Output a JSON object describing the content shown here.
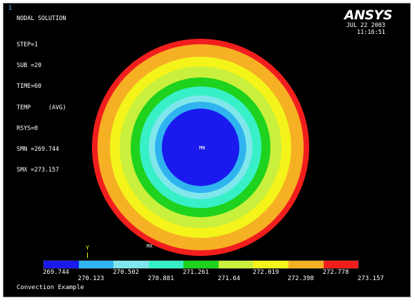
{
  "window_number": "1",
  "result_title": "NODAL SOLUTION",
  "info": {
    "step": "STEP=1",
    "sub": "SUB =20",
    "time": "TIME=60",
    "temp": "TEMP     (AVG)",
    "rsys": "RSYS=0",
    "smn": "SMN =269.744",
    "smx": "SMX =273.157"
  },
  "vendor_logo": "ANSYS",
  "date": "JUL 22 2003",
  "time_stamp": "11:16:51",
  "markers": {
    "min": "MN",
    "max": "MX"
  },
  "triad_axis": "Y",
  "legend": {
    "colors": [
      "#1a1aee",
      "#2fb4f0",
      "#7fe7ec",
      "#38f0c8",
      "#1ed21e",
      "#c8f03c",
      "#f4f41a",
      "#f6b024",
      "#f21e1e"
    ],
    "values_upper": [
      "269.744",
      "270.502",
      "271.261",
      "272.019",
      "272.778"
    ],
    "values_lower": [
      "270.123",
      "270.881",
      "271.64",
      "272.398",
      "273.157"
    ]
  },
  "contour_colors": {
    "outer": "#f21e1e",
    "ring1": "#f6b024",
    "ring2": "#f4f41a",
    "ring3": "#c8f03c",
    "ring4": "#1ed21e",
    "ring5": "#38f0c8",
    "ring6": "#7fe7ec",
    "ring7": "#2fb4f0",
    "core": "#1a1aee"
  },
  "footer_title": "Convection Example"
}
